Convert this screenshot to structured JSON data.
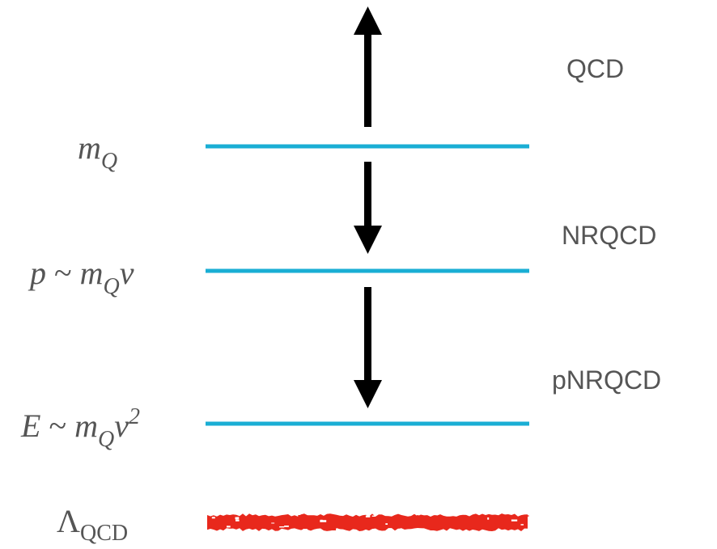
{
  "colors": {
    "scale_line": "#1aaed4",
    "arrow": "#000000",
    "lambda_band": "#e8281c",
    "label_text": "#555555"
  },
  "theories": {
    "qcd": "QCD",
    "nrqcd": "NRQCD",
    "pnrqcd": "pNRQCD"
  },
  "scales": {
    "m_q": {
      "base": "m",
      "sub": "Q"
    },
    "p": {
      "lhs": "p",
      "rel": " ~ ",
      "base": "m",
      "sub": "Q",
      "tail": "v"
    },
    "e": {
      "lhs": "E",
      "rel": " ~ ",
      "base": "m",
      "sub": "Q",
      "tail": "v",
      "sup": "2"
    },
    "lambda": {
      "base": "Λ",
      "sub": "QCD"
    }
  },
  "arrows": [
    {
      "name": "arrow-up-qcd",
      "direction": "up"
    },
    {
      "name": "arrow-down-nrqcd",
      "direction": "down"
    },
    {
      "name": "arrow-down-pnrqcd",
      "direction": "down"
    }
  ]
}
